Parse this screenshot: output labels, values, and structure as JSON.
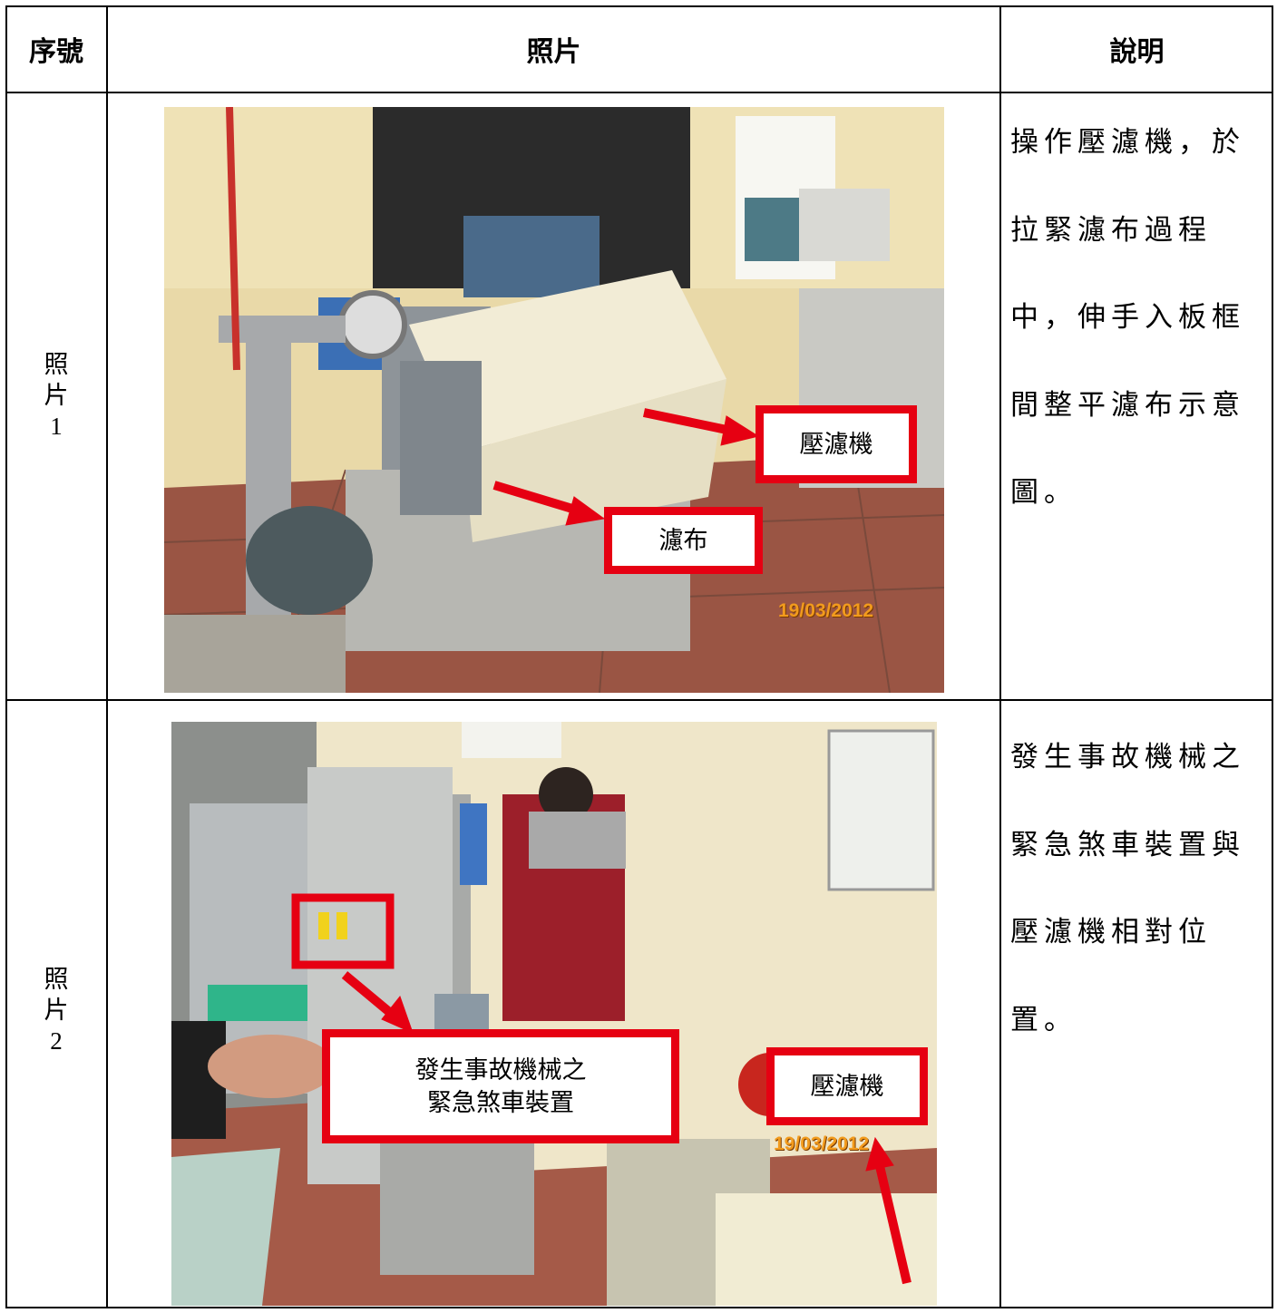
{
  "table": {
    "header": [
      "序號",
      "照片",
      "說明"
    ],
    "rows": [
      {
        "label": "照片1",
        "photo_labels": [
          [
            "壓濾機"
          ],
          [
            "濾布"
          ]
        ],
        "photo_date": "19/03/2012",
        "description": [
          "操作壓濾機，於",
          "拉緊濾布過程",
          "中，伸手入板框",
          "間整平濾布示意",
          "圖。"
        ]
      },
      {
        "label": "照片2",
        "photo_labels": [
          [
            "發生事故機械之",
            "緊急煞車裝置"
          ],
          [
            "壓濾機"
          ]
        ],
        "photo_date": "19/03/2012",
        "description": [
          "發生事故機械之",
          "緊急煞車裝置與",
          "壓濾機相對位",
          "置。"
        ]
      }
    ]
  }
}
